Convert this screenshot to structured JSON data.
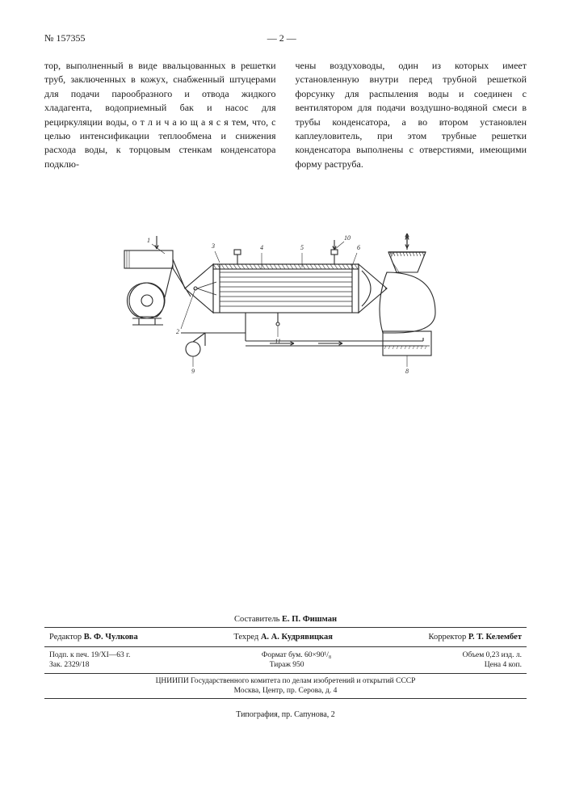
{
  "header": {
    "doc_number": "№ 157355",
    "page_label": "— 2 —"
  },
  "body": {
    "col1": "тор, выполненный в виде ввальцованных в решетки труб, заключенных в кожух, снабженный штуцерами для подачи парообразного и отвода жидкого хладагента, водоприемный бак и насос для рециркуляции воды, о т л и ч а ю щ а я с я тем, что, с целью интенсификации теплообмена и снижения расхода воды, к торцовым стенкам конденсатора подклю-",
    "col2": "чены воздуховоды, один из которых имеет установленную внутри перед трубной решеткой форсунку для распыления воды и соединен с вентилятором для подачи воздушно-водяной смеси в трубы конденсатора, а во втором установлен каплеуловитель, при этом трубные решетки конденсатора выполнены с отверстиями, имеющими форму раструба."
  },
  "diagram": {
    "stroke": "#2a2a2a",
    "stroke_width": 1.1,
    "hatch_stroke": "#2a2a2a",
    "labels": [
      "1",
      "2",
      "3",
      "4",
      "5",
      "6",
      "7",
      "8",
      "9",
      "10",
      "11"
    ],
    "label_fontsize": 8
  },
  "footer": {
    "compiler_label": "Составитель",
    "compiler_name": "Е. П. Фишман",
    "editor_label": "Редактор",
    "editor_name": "В. Ф. Чулкова",
    "techred_label": "Техред",
    "techred_name": "А. А. Кудрявицкая",
    "corrector_label": "Корректор",
    "corrector_name": "Р. Т. Келембет",
    "meta_left1": "Подп. к печ. 19/XI—63 г.",
    "meta_mid1": "Формат бум. 60×90¹/₈",
    "meta_right1": "Объем 0,23 изд. л.",
    "meta_left2": "Зак. 2329/18",
    "meta_mid2": "Тираж 950",
    "meta_right2": "Цена 4 коп.",
    "org": "ЦНИИПИ Государственного комитета по делам изобретений и открытий СССР",
    "address": "Москва, Центр, пр. Серова, д. 4",
    "typo": "Типография, пр. Сапунова, 2"
  }
}
